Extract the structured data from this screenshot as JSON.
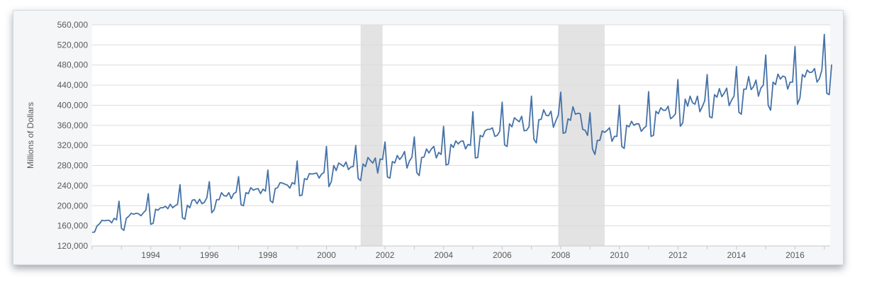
{
  "chart_data": {
    "type": "line",
    "title": "",
    "xlabel": "",
    "ylabel": "Millions of Dollars",
    "xlim": [
      1992.0,
      2017.2
    ],
    "ylim": [
      120000,
      560000
    ],
    "y_ticks": [
      "120,000",
      "160,000",
      "200,000",
      "240,000",
      "280,000",
      "320,000",
      "360,000",
      "400,000",
      "440,000",
      "480,000",
      "520,000",
      "560,000"
    ],
    "x_ticks": [
      "1994",
      "1996",
      "1998",
      "2000",
      "2002",
      "2004",
      "2006",
      "2008",
      "2010",
      "2012",
      "2014",
      "2016"
    ],
    "grid": "horizontal",
    "recessions": [
      {
        "start": "2001-03",
        "end": "2001-11"
      },
      {
        "start": "2007-12",
        "end": "2009-06"
      }
    ],
    "series": [
      {
        "color": "#4572a7",
        "start": "1992-01",
        "frequency": "monthly",
        "values": [
          147000,
          147700,
          160000,
          164000,
          171000,
          170000,
          171000,
          171000,
          166000,
          175000,
          172000,
          209000,
          155000,
          151000,
          175000,
          179000,
          185000,
          183000,
          185000,
          184000,
          180000,
          186000,
          191000,
          224000,
          163000,
          165000,
          193000,
          191000,
          196000,
          196000,
          199000,
          194000,
          203000,
          196000,
          200000,
          203000,
          242000,
          176000,
          173000,
          201000,
          196000,
          211000,
          212000,
          204000,
          213000,
          204000,
          207000,
          216000,
          248000,
          186000,
          192000,
          212000,
          212000,
          226000,
          220000,
          219000,
          226000,
          214000,
          224000,
          227000,
          258000,
          202000,
          200000,
          226000,
          224000,
          236000,
          231000,
          233000,
          234000,
          224000,
          233000,
          229000,
          271000,
          210000,
          206000,
          234000,
          236000,
          246000,
          245000,
          243000,
          241000,
          235000,
          246000,
          243000,
          289000,
          220000,
          221000,
          254000,
          252000,
          264000,
          263000,
          264000,
          265000,
          255000,
          263000,
          266000,
          318000,
          238000,
          248000,
          280000,
          270000,
          285000,
          282000,
          278000,
          287000,
          272000,
          277000,
          278000,
          320000,
          254000,
          250000,
          283000,
          278000,
          296000,
          290000,
          285000,
          295000,
          265000,
          293000,
          292000,
          327000,
          257000,
          255000,
          288000,
          285000,
          300000,
          292000,
          298000,
          308000,
          275000,
          289000,
          296000,
          337000,
          266000,
          260000,
          296000,
          297000,
          313000,
          305000,
          313000,
          318000,
          295000,
          306000,
          302000,
          358000,
          281000,
          283000,
          322000,
          316000,
          329000,
          323000,
          328000,
          329000,
          313000,
          322000,
          320000,
          387000,
          295000,
          296000,
          340000,
          337000,
          349000,
          352000,
          352000,
          355000,
          338000,
          340000,
          348000,
          406000,
          321000,
          318000,
          363000,
          357000,
          375000,
          371000,
          367000,
          378000,
          349000,
          350000,
          357000,
          418000,
          332000,
          325000,
          371000,
          372000,
          391000,
          380000,
          379000,
          388000,
          356000,
          369000,
          380000,
          426000,
          344000,
          346000,
          373000,
          370000,
          397000,
          382000,
          384000,
          383000,
          352000,
          350000,
          340000,
          385000,
          313000,
          302000,
          330000,
          330000,
          349000,
          346000,
          350000,
          355000,
          328000,
          338000,
          338000,
          400000,
          318000,
          314000,
          360000,
          357000,
          368000,
          360000,
          363000,
          363000,
          348000,
          354000,
          358000,
          427000,
          338000,
          340000,
          388000,
          383000,
          395000,
          390000,
          390000,
          398000,
          373000,
          377000,
          383000,
          451000,
          358000,
          365000,
          412000,
          398000,
          418000,
          405000,
          402000,
          418000,
          387000,
          397000,
          409000,
          461000,
          377000,
          375000,
          421000,
          416000,
          433000,
          417000,
          424000,
          434000,
          399000,
          410000,
          418000,
          477000,
          386000,
          382000,
          432000,
          432000,
          457000,
          431000,
          437000,
          450000,
          418000,
          434000,
          440000,
          500000,
          400000,
          390000,
          446000,
          441000,
          462000,
          452000,
          458000,
          456000,
          432000,
          446000,
          446000,
          517000,
          402000,
          414000,
          461000,
          456000,
          470000,
          465000,
          466000,
          473000,
          446000,
          453000,
          470000,
          541000,
          424000,
          421000,
          481000
        ]
      }
    ]
  }
}
